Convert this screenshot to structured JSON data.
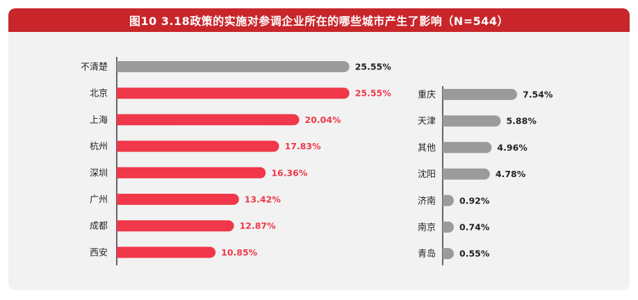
{
  "title": "图10 3.18政策的实施对参调企业所在的哪些城市产生了影响（N=544）",
  "colors": {
    "header": "#c8262b",
    "red": "#f0384a",
    "gray": "#9b9b9b",
    "text": "#222222"
  },
  "chart_data": [
    {
      "type": "bar",
      "orientation": "horizontal",
      "categories": [
        "不清楚",
        "北京",
        "上海",
        "杭州",
        "深圳",
        "广州",
        "成都",
        "西安"
      ],
      "values": [
        25.55,
        25.55,
        20.04,
        17.83,
        16.36,
        13.42,
        12.87,
        10.85
      ],
      "value_labels": [
        "25.55%",
        "25.55%",
        "20.04%",
        "17.83%",
        "16.36%",
        "13.42%",
        "12.87%",
        "10.85%"
      ],
      "bar_colors": [
        "gray",
        "red",
        "red",
        "red",
        "red",
        "red",
        "red",
        "red"
      ],
      "unit": "%"
    },
    {
      "type": "bar",
      "orientation": "horizontal",
      "categories": [
        "重庆",
        "天津",
        "其他",
        "沈阳",
        "济南",
        "南京",
        "青岛"
      ],
      "values": [
        7.54,
        5.88,
        4.96,
        4.78,
        0.92,
        0.74,
        0.55
      ],
      "value_labels": [
        "7.54%",
        "5.88%",
        "4.96%",
        "4.78%",
        "0.92%",
        "0.74%",
        "0.55%"
      ],
      "bar_colors": [
        "gray",
        "gray",
        "gray",
        "gray",
        "gray",
        "gray",
        "gray"
      ],
      "unit": "%"
    }
  ]
}
